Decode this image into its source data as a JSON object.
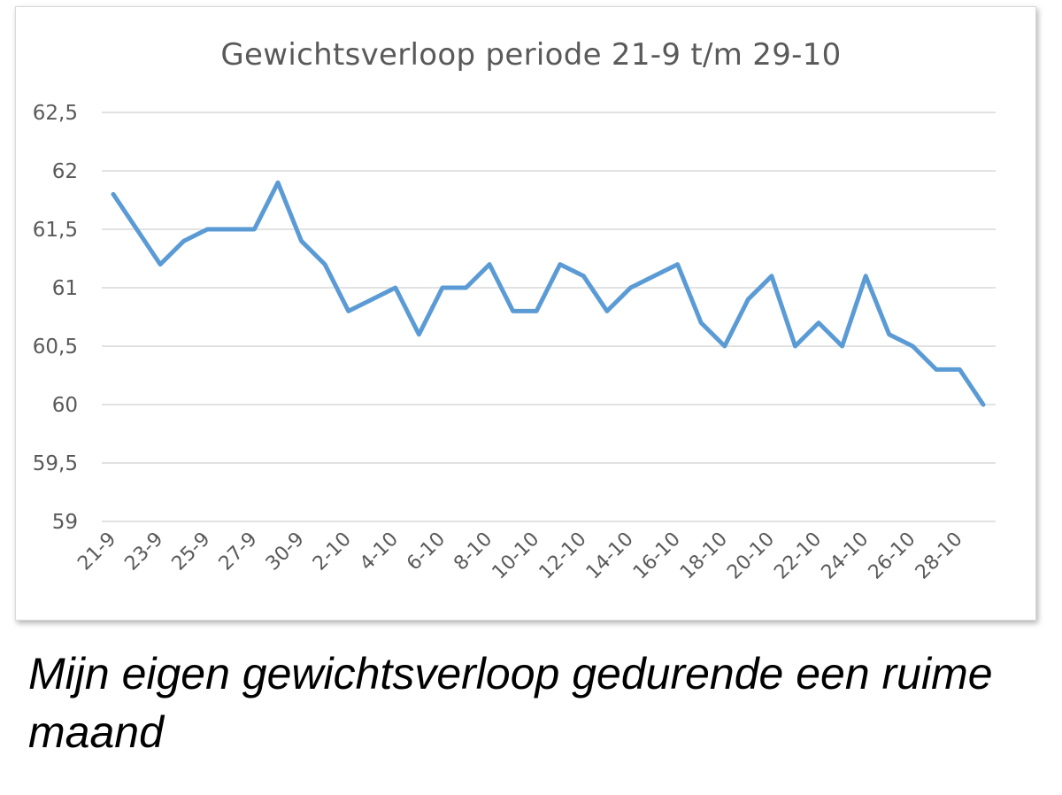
{
  "caption": "Mijn eigen gewichtsverloop gedurende een ruime maand",
  "chart_data": {
    "type": "line",
    "title": "Gewichtsverloop periode 21-9 t/m 29-10",
    "xlabel": "",
    "ylabel": "",
    "ylim": [
      59,
      62.5
    ],
    "yticks": [
      "59",
      "59,5",
      "60",
      "60,5",
      "61",
      "61,5",
      "62",
      "62,5"
    ],
    "ytick_values": [
      59,
      59.5,
      60,
      60.5,
      61,
      61.5,
      62,
      62.5
    ],
    "grid": true,
    "legend": "none",
    "line_color": "#5b9bd5",
    "x": [
      "21-9",
      "22-9",
      "23-9",
      "24-9",
      "25-9",
      "26-9",
      "27-9",
      "28-9",
      "30-9",
      "1-10",
      "2-10",
      "3-10",
      "4-10",
      "5-10",
      "6-10",
      "7-10",
      "8-10",
      "9-10",
      "10-10",
      "11-10",
      "12-10",
      "13-10",
      "14-10",
      "15-10",
      "16-10",
      "17-10",
      "18-10",
      "19-10",
      "20-10",
      "21-10",
      "22-10",
      "23-10",
      "24-10",
      "25-10",
      "26-10",
      "27-10",
      "28-10",
      "29-10"
    ],
    "xtick_labels": [
      "21-9",
      "23-9",
      "25-9",
      "27-9",
      "30-9",
      "2-10",
      "4-10",
      "6-10",
      "8-10",
      "10-10",
      "12-10",
      "14-10",
      "16-10",
      "18-10",
      "20-10",
      "22-10",
      "24-10",
      "26-10",
      "28-10"
    ],
    "series": [
      {
        "values": [
          61.8,
          61.5,
          61.2,
          61.4,
          61.5,
          61.5,
          61.5,
          61.9,
          61.4,
          61.2,
          60.8,
          60.9,
          61.0,
          60.6,
          61.0,
          61.0,
          61.2,
          60.8,
          60.8,
          61.2,
          61.1,
          60.8,
          61.0,
          61.1,
          61.2,
          60.7,
          60.5,
          60.9,
          61.1,
          60.5,
          60.7,
          60.5,
          61.1,
          60.6,
          60.5,
          60.3,
          60.3,
          60.0
        ]
      }
    ]
  }
}
